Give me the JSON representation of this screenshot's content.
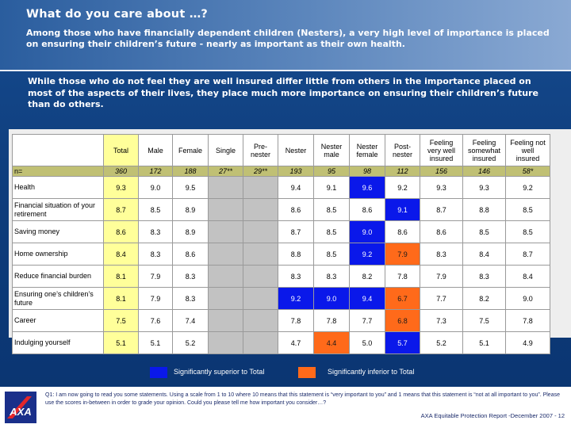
{
  "header": {
    "title": "What do you care about …?",
    "subtitle": "Among those who have financially dependent children (Nesters), a very high level of importance is placed on ensuring their children’s future - nearly as important as their own health."
  },
  "intro": "While those who do not feel they are well insured differ little from others in the importance placed on most of the aspects of their lives, they place much more importance on ensuring their children’s future than do others.",
  "table": {
    "columns": [
      [
        "",
        ""
      ],
      [
        "Total",
        ""
      ],
      [
        "Male",
        ""
      ],
      [
        "Female",
        ""
      ],
      [
        "Single",
        ""
      ],
      [
        "Pre-",
        "nester"
      ],
      [
        "Nester",
        ""
      ],
      [
        "Nester",
        "male"
      ],
      [
        "Nester",
        "female"
      ],
      [
        "Post-",
        "nester"
      ],
      [
        "Feeling",
        "very well",
        "insured"
      ],
      [
        "Feeling",
        "somewhat",
        "insured"
      ],
      [
        "Feeling not",
        "well",
        "insured"
      ]
    ],
    "n_row": [
      "n=",
      "360",
      "172",
      "188",
      "27**",
      "29**",
      "193",
      "95",
      "98",
      "112",
      "156",
      "146",
      "58*"
    ],
    "rows": [
      {
        "label": [
          "Health"
        ],
        "values": [
          "9.3",
          "9.0",
          "9.5",
          "",
          "",
          "9.4",
          "9.1",
          "9.6",
          "9.2",
          "9.3",
          "9.3",
          "9.2"
        ],
        "status": [
          "",
          "",
          "",
          "g",
          "g",
          "",
          "",
          "s",
          "",
          "",
          "",
          ""
        ]
      },
      {
        "label": [
          "Financial situation of your",
          "retirement"
        ],
        "values": [
          "8.7",
          "8.5",
          "8.9",
          "",
          "",
          "8.6",
          "8.5",
          "8.6",
          "9.1",
          "8.7",
          "8.8",
          "8.5"
        ],
        "status": [
          "",
          "",
          "",
          "g",
          "g",
          "",
          "",
          "",
          "s",
          "",
          "",
          ""
        ]
      },
      {
        "label": [
          "Saving money"
        ],
        "values": [
          "8.6",
          "8.3",
          "8.9",
          "",
          "",
          "8.7",
          "8.5",
          "9.0",
          "8.6",
          "8.6",
          "8.5",
          "8.5"
        ],
        "status": [
          "",
          "",
          "",
          "g",
          "g",
          "",
          "",
          "s",
          "",
          "",
          "",
          ""
        ]
      },
      {
        "label": [
          "Home ownership"
        ],
        "values": [
          "8.4",
          "8.3",
          "8.6",
          "",
          "",
          "8.8",
          "8.5",
          "9.2",
          "7.9",
          "8.3",
          "8.4",
          "8.7"
        ],
        "status": [
          "",
          "",
          "",
          "g",
          "g",
          "",
          "",
          "s",
          "i",
          "",
          "",
          ""
        ]
      },
      {
        "label": [
          "Reduce financial burden"
        ],
        "values": [
          "8.1",
          "7.9",
          "8.3",
          "",
          "",
          "8.3",
          "8.3",
          "8.2",
          "7.8",
          "7.9",
          "8.3",
          "8.4"
        ],
        "status": [
          "",
          "",
          "",
          "g",
          "g",
          "",
          "",
          "",
          "",
          "",
          "",
          ""
        ]
      },
      {
        "label": [
          "Ensuring one’s children’s",
          "future"
        ],
        "values": [
          "8.1",
          "7.9",
          "8.3",
          "",
          "",
          "9.2",
          "9.0",
          "9.4",
          "6.7",
          "7.7",
          "8.2",
          "9.0"
        ],
        "status": [
          "",
          "",
          "",
          "g",
          "g",
          "s",
          "s",
          "s",
          "i",
          "",
          "",
          ""
        ]
      },
      {
        "label": [
          "Career"
        ],
        "values": [
          "7.5",
          "7.6",
          "7.4",
          "",
          "",
          "7.8",
          "7.8",
          "7.7",
          "6.8",
          "7.3",
          "7.5",
          "7.8"
        ],
        "status": [
          "",
          "",
          "",
          "g",
          "g",
          "",
          "",
          "",
          "i",
          "",
          "",
          ""
        ]
      },
      {
        "label": [
          "Indulging yourself"
        ],
        "values": [
          "5.1",
          "5.1",
          "5.2",
          "",
          "",
          "4.7",
          "4.4",
          "5.0",
          "5.7",
          "5.2",
          "5.1",
          "4.9"
        ],
        "status": [
          "",
          "",
          "",
          "g",
          "g",
          "",
          "i",
          "",
          "s",
          "",
          "",
          ""
        ]
      }
    ]
  },
  "legend": {
    "superior": "Significantly superior to Total",
    "inferior": "Significantly inferior to Total",
    "superior_color": "#0a18ea",
    "inferior_color": "#ff6a1a"
  },
  "footer": {
    "logo_icon": "axa-logo-icon",
    "logo_text": "AXA",
    "footnote": "Q1: I am now going to read you some statements. Using a scale from 1 to 10 where 10 means that this statement is “very important to you” and 1 means that this statement is “not at all important to you”. Please use the scores in-between in order to grade your opinion. Could you please tell me how important you consider…?",
    "source": "AXA Equitable Protection Report -December 2007 - 12"
  }
}
